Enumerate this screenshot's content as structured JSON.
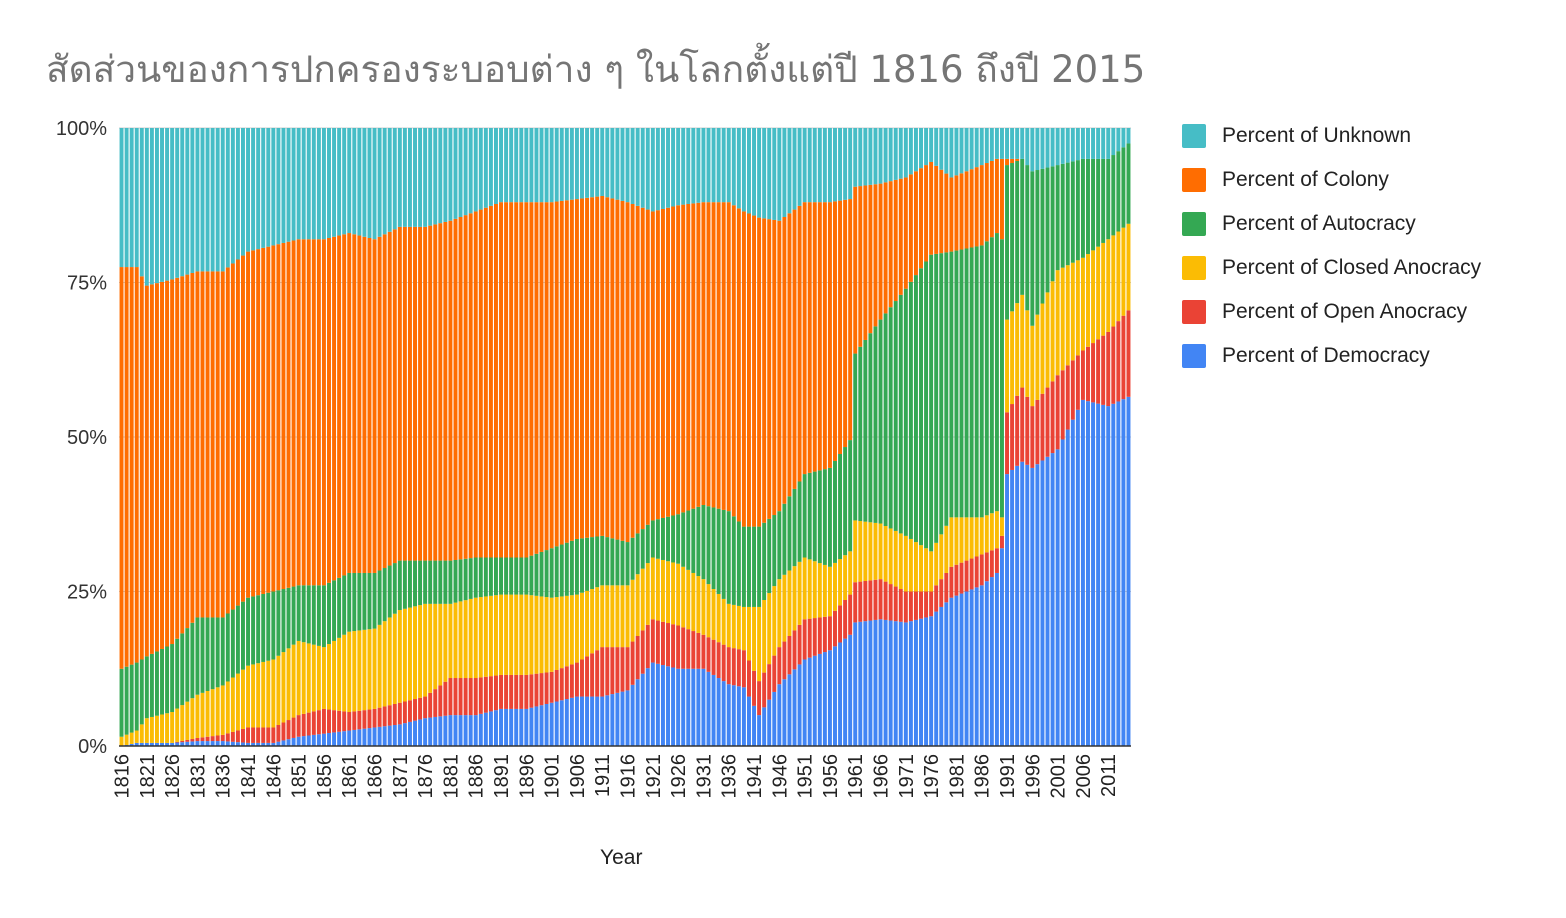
{
  "title": "สัดส่วนของการปกครองระบอบต่าง ๆ ในโลกตั้งแต่ปี 1816 ถึงปี 2015",
  "chart_data": {
    "type": "bar",
    "stacked": true,
    "percent_stacked": true,
    "title": "สัดส่วนของการปกครองระบอบต่าง ๆ ในโลกตั้งแต่ปี 1816 ถึงปี 2015",
    "xlabel": "Year",
    "ylabel": "",
    "ylim": [
      0,
      100
    ],
    "yticks": [
      "0%",
      "25%",
      "50%",
      "75%",
      "100%"
    ],
    "x_start": 1816,
    "x_end": 2015,
    "xticks": [
      1816,
      1821,
      1826,
      1831,
      1836,
      1841,
      1846,
      1851,
      1856,
      1861,
      1866,
      1871,
      1876,
      1881,
      1886,
      1891,
      1896,
      1901,
      1906,
      1911,
      1916,
      1921,
      1926,
      1931,
      1936,
      1941,
      1946,
      1951,
      1956,
      1961,
      1966,
      1971,
      1976,
      1981,
      1986,
      1991,
      1996,
      2001,
      2006,
      2011
    ],
    "grid": true,
    "legend_position": "right",
    "keyframe_years": [
      1816,
      1819,
      1821,
      1826,
      1831,
      1836,
      1841,
      1846,
      1851,
      1856,
      1861,
      1866,
      1871,
      1876,
      1881,
      1886,
      1891,
      1896,
      1901,
      1906,
      1911,
      1916,
      1921,
      1926,
      1931,
      1936,
      1939,
      1942,
      1946,
      1951,
      1956,
      1960,
      1961,
      1966,
      1971,
      1976,
      1980,
      1986,
      1989,
      1990,
      1991,
      1994,
      1996,
      2001,
      2006,
      2011,
      2015
    ],
    "series": [
      {
        "name": "Percent of Democracy",
        "color": "#4285f4",
        "values": [
          0,
          0.5,
          0.5,
          0.5,
          0.8,
          0.8,
          0.5,
          0.5,
          1.5,
          2,
          2.5,
          3,
          3.5,
          4.5,
          5,
          5,
          6,
          6,
          7,
          8,
          8,
          9,
          13.5,
          12.5,
          12.5,
          10,
          9.5,
          5,
          10,
          14,
          15.5,
          18,
          20,
          20.5,
          20,
          21,
          24,
          26,
          28,
          32,
          44,
          46,
          45,
          48,
          56,
          55,
          56.5
        ]
      },
      {
        "name": "Percent of Open Anocracy",
        "color": "#ea4335",
        "values": [
          0,
          0,
          0,
          0,
          0.5,
          1,
          2.5,
          2.5,
          3.5,
          4,
          3,
          3,
          3.5,
          3.5,
          6,
          6,
          5.5,
          5.5,
          5,
          5.5,
          8,
          7,
          7,
          7,
          5.5,
          6,
          6,
          5.5,
          6,
          6.5,
          5.5,
          6.5,
          6.5,
          6.5,
          5,
          4,
          5,
          5,
          4,
          2,
          10,
          12,
          10,
          12,
          8,
          12,
          14
        ]
      },
      {
        "name": "Percent of Closed Anocracy",
        "color": "#fbbc04",
        "values": [
          1.5,
          2,
          4,
          5,
          7,
          8,
          10,
          11,
          12,
          10,
          13,
          13,
          15,
          15,
          12,
          13,
          13,
          13,
          12,
          11,
          10,
          10,
          10,
          10,
          9,
          7,
          7,
          12,
          11,
          10,
          8,
          7,
          10,
          9,
          9,
          6.5,
          8,
          6,
          6,
          3,
          15,
          15,
          13,
          17,
          15,
          15,
          14
        ]
      },
      {
        "name": "Percent of Autocracy",
        "color": "#34a853",
        "values": [
          11,
          11,
          10,
          11,
          12.5,
          11,
          11,
          11,
          9,
          10,
          9.5,
          9,
          8,
          7,
          7,
          6.5,
          6,
          6,
          8,
          9,
          8,
          7,
          6,
          8,
          12,
          15,
          13,
          13,
          11,
          13.5,
          16,
          18,
          27,
          33,
          40,
          48,
          43,
          44,
          45,
          45,
          25,
          22,
          25,
          17,
          16,
          13,
          13
        ]
      },
      {
        "name": "Percent of Colony",
        "color": "#ff6d01",
        "values": [
          65,
          64,
          60,
          59,
          56,
          56,
          56,
          56,
          56,
          56,
          55,
          54,
          54,
          54,
          55,
          56,
          57.5,
          57.5,
          56,
          55,
          55,
          55,
          50,
          50,
          49,
          50,
          51,
          50,
          47,
          44,
          43,
          39,
          27,
          22,
          18,
          15,
          12,
          13,
          12,
          13,
          1,
          0,
          0,
          0,
          0,
          0,
          0
        ]
      },
      {
        "name": "Percent of Unknown",
        "color": "#46bdc6",
        "values": [
          22.5,
          22.5,
          25.5,
          24.5,
          23.2,
          23.2,
          20,
          19,
          18,
          18,
          17,
          18,
          16,
          16,
          15,
          13.5,
          12,
          12,
          12,
          11.5,
          11,
          12,
          13.5,
          12.5,
          12,
          12,
          13.5,
          14.5,
          15,
          12,
          12,
          11.5,
          9.5,
          9,
          8,
          5.5,
          8,
          6,
          5,
          5,
          5,
          5,
          7,
          6,
          5,
          5,
          2.5
        ]
      }
    ]
  }
}
